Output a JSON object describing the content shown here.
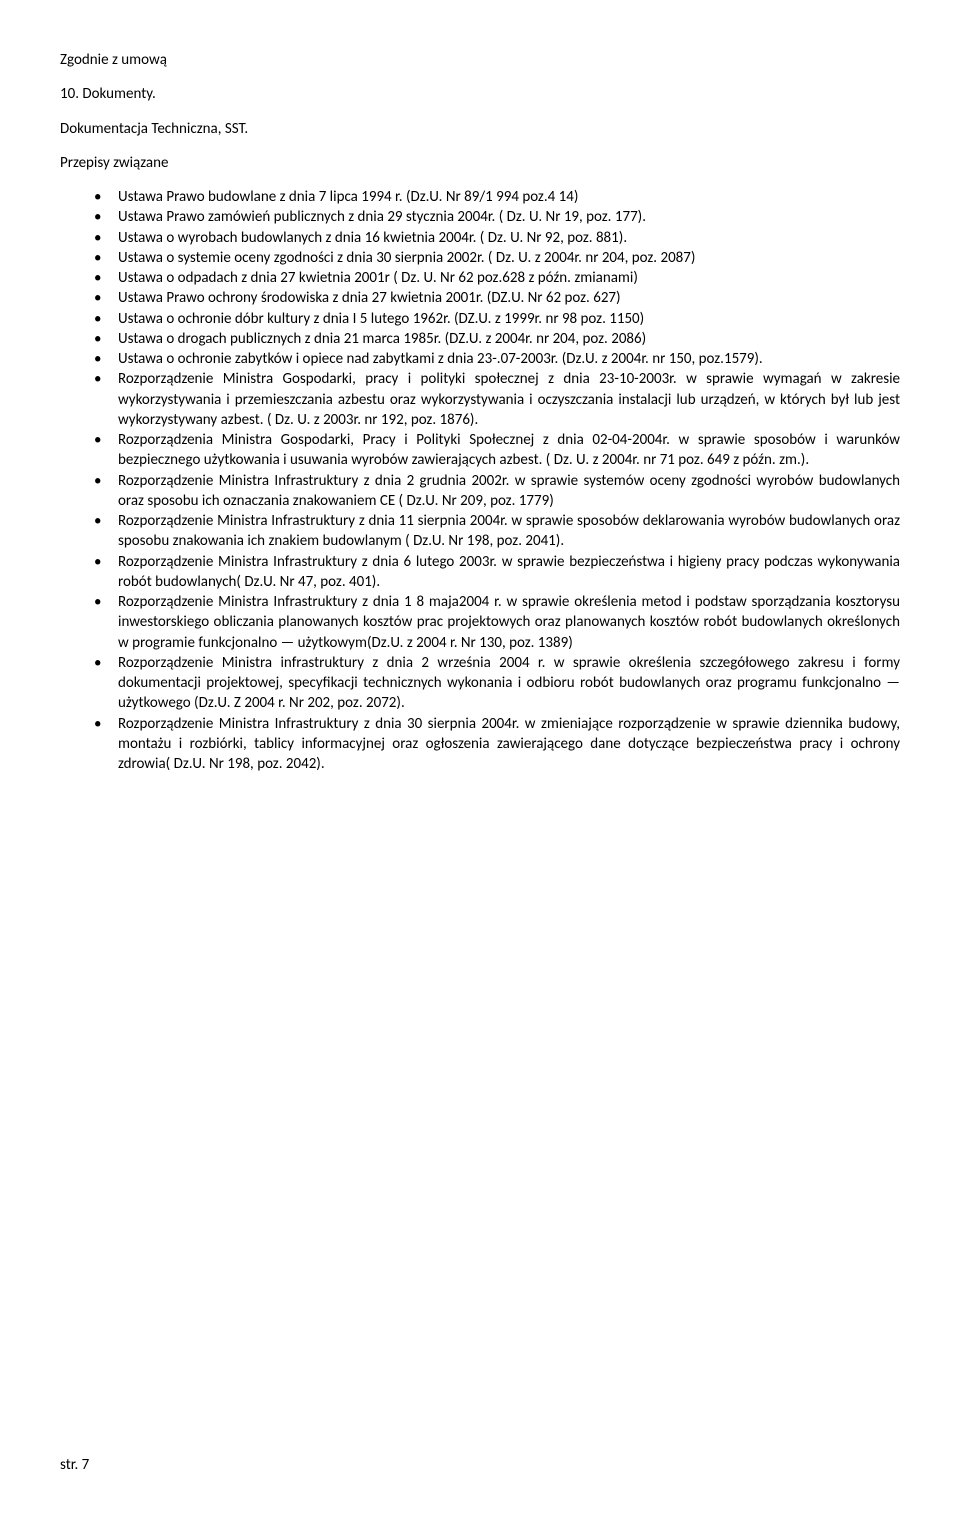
{
  "intro": "Zgodnie z umową",
  "sectionNumber": "10. Dokumenty.",
  "docLine": "Dokumentacja Techniczna, SST.",
  "relatedTitle": "Przepisy związane",
  "bullets": [
    "Ustawa Prawo budowlane z dnia 7 lipca 1994 r. (Dz.U. Nr 89/1 994 poz.4 14)",
    "Ustawa Prawo zamówień publicznych z dnia 29 stycznia 2004r. ( Dz. U. Nr 19, poz. 177).",
    "Ustawa o wyrobach budowlanych z dnia 16 kwietnia 2004r. ( Dz. U. Nr 92, poz. 881).",
    "Ustawa o systemie oceny zgodności z dnia 30 sierpnia 2002r. ( Dz. U. z 2004r. nr 204, poz. 2087)",
    "Ustawa o odpadach z dnia 27 kwietnia 2001r ( Dz. U. Nr 62 poz.628 z późn. zmianami)",
    "Ustawa Prawo ochrony środowiska z dnia 27 kwietnia 2001r. (DZ.U. Nr 62 poz. 627)",
    "Ustawa o ochronie dóbr kultury z dnia I 5 lutego 1962r. (DZ.U. z 1999r. nr 98 poz. 1150)",
    "Ustawa o drogach publicznych z dnia 21 marca 1985r. (DZ.U. z 2004r. nr 204, poz. 2086)",
    "Ustawa o ochronie zabytków i opiece nad zabytkami z dnia 23-.07-2003r. (Dz.U. z 2004r. nr 150, poz.1579).",
    "Rozporządzenie Ministra Gospodarki, pracy i polityki społecznej z dnia 23-10-2003r. w sprawie wymagań w zakresie wykorzystywania i przemieszczania azbestu oraz wykorzystywania                                 i oczyszczania instalacji lub urządzeń, w których był lub jest wykorzystywany azbest. ( Dz. U.                   z 2003r. nr 192, poz. 1876).",
    "Rozporządzenia Ministra Gospodarki, Pracy i Polityki Społecznej z dnia 02-04-2004r. w sprawie sposobów i warunków bezpiecznego użytkowania i usuwania wyrobów zawierających azbest. ( Dz. U. z 2004r. nr 71 poz. 649 z późn. zm.).",
    "Rozporządzenie Ministra Infrastruktury z dnia 2 grudnia 2002r. w sprawie systemów oceny zgodności wyrobów budowlanych oraz sposobu ich oznaczania znakowaniem CE ( Dz.U. Nr 209, poz. 1779)",
    "Rozporządzenie Ministra Infrastruktury z dnia 11 sierpnia 2004r. w sprawie sposobów deklarowania wyrobów budowlanych oraz sposobu znakowania ich znakiem budowlanym ( Dz.U. Nr 198, poz. 2041).",
    "Rozporządzenie Ministra Infrastruktury z dnia 6 lutego 2003r. w sprawie bezpieczeństwa i higieny pracy podczas wykonywania robót budowlanych( Dz.U. Nr 47, poz. 401).",
    "Rozporządzenie Ministra Infrastruktury z dnia 1 8 maja2004 r. w sprawie określenia metod i podstaw sporządzania kosztorysu inwestorskiego obliczania planowanych kosztów prac projektowych oraz planowanych kosztów robót budowlanych określonych w programie funkcjonalno — użytkowym(Dz.U. z 2004 r. Nr 130, poz. 1389)",
    "Rozporządzenie Ministra infrastruktury z dnia 2 września 2004 r. w sprawie określenia szczegółowego zakresu i formy dokumentacji projektowej, specyfikacji technicznych wykonania i odbioru robót budowlanych oraz programu funkcjonalno — użytkowego (Dz.U. Z 2004 r. Nr 202, poz. 2072).",
    "Rozporządzenie Ministra Infrastruktury z dnia 30 sierpnia 2004r. w zmieniające rozporządzenie w sprawie dziennika budowy, montażu i rozbiórki, tablicy informacyjnej oraz ogłoszenia zawierającego dane dotyczące bezpieczeństwa pracy i ochrony zdrowia( Dz.U. Nr 198, poz. 2042)."
  ],
  "footer": "str. 7"
}
